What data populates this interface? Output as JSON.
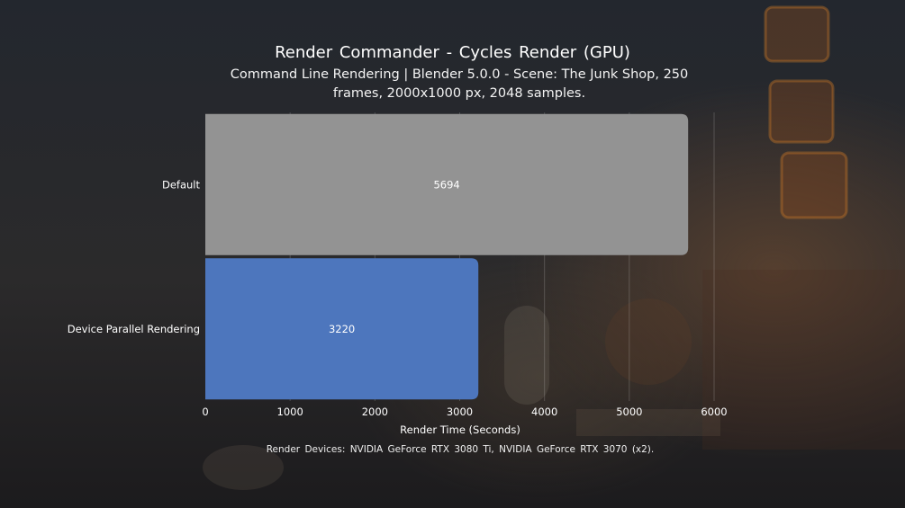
{
  "colors": {
    "default_bar": "#939393",
    "parallel_bar": "#4d76bd"
  },
  "chart_data": {
    "type": "bar",
    "orientation": "horizontal",
    "title": "Render Commander - Cycles Render (GPU)",
    "subtitle": "Command Line Rendering | Blender 5.0.0 - Scene: The Junk Shop, 250 frames, 2000x1000 px, 2048 samples.",
    "categories": [
      "Default",
      "Device Parallel Rendering"
    ],
    "values": [
      5694,
      3220
    ],
    "value_labels": [
      "5694",
      "3220"
    ],
    "bar_colors": [
      "#939393",
      "#4d76bd"
    ],
    "xlabel": "Render Time (Seconds)",
    "ylabel": "",
    "xlim": [
      0,
      6000
    ],
    "xticks": [
      "0",
      "1000",
      "2000",
      "3000",
      "4000",
      "5000",
      "6000"
    ],
    "grid": "vertical",
    "footnote": "Render Devices: NVIDIA GeForce RTX 3080 Ti, NVIDIA GeForce RTX 3070 (x2)."
  }
}
